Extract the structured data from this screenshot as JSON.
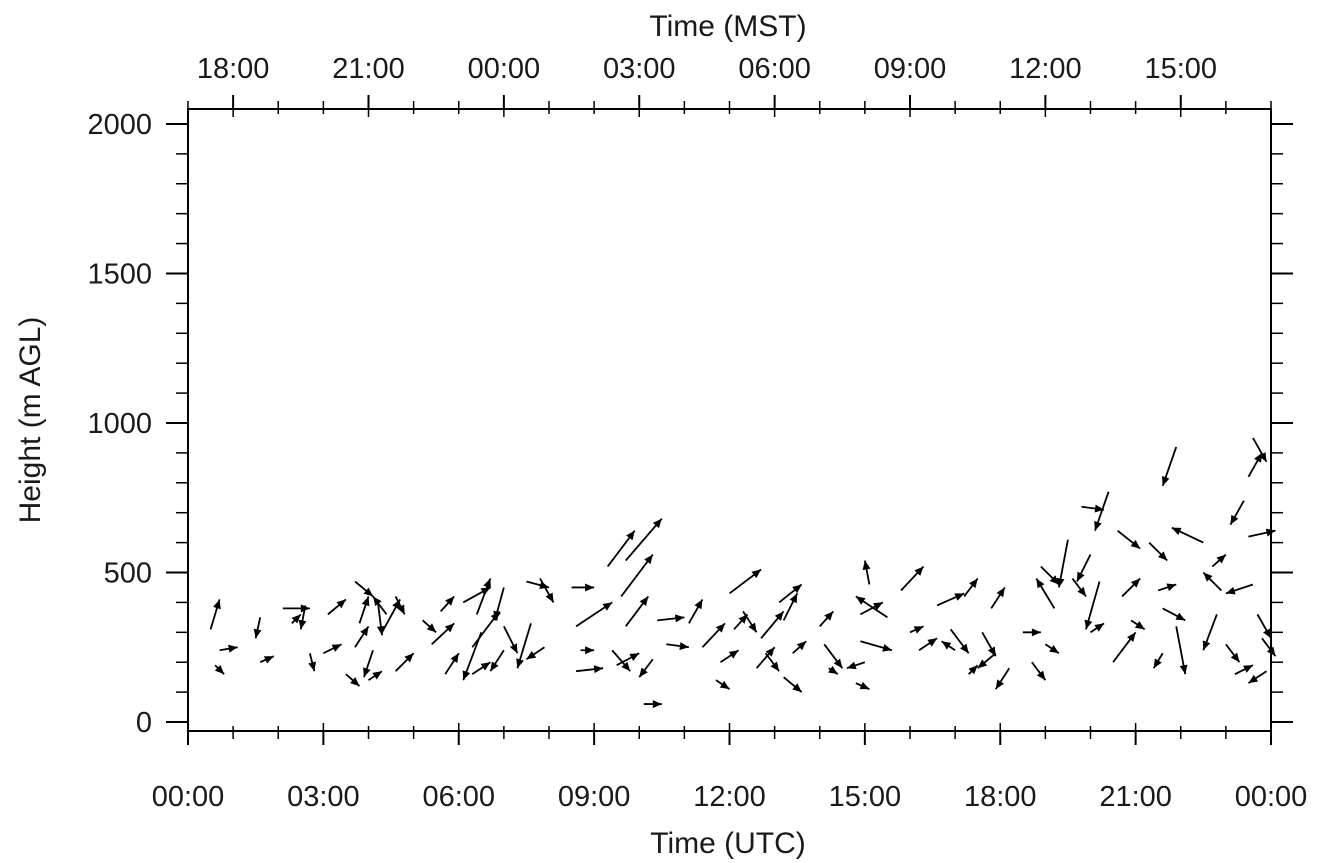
{
  "chart_data": {
    "type": "vector",
    "title": "",
    "xlabel_bottom": "Time (UTC)",
    "xlabel_top": "Time (MST)",
    "ylabel": "Height (m AGL)",
    "x_unit": "hours since 00:00 UTC",
    "xlim": [
      0,
      24
    ],
    "ylim": [
      -30,
      2050
    ],
    "x_ticks_bottom": [
      "00:00",
      "03:00",
      "06:00",
      "09:00",
      "12:00",
      "15:00",
      "18:00",
      "21:00",
      "00:00"
    ],
    "x_ticks_top": [
      "18:00",
      "21:00",
      "00:00",
      "03:00",
      "06:00",
      "09:00",
      "12:00",
      "15:00"
    ],
    "y_ticks": [
      "0",
      "500",
      "1000",
      "1500",
      "2000"
    ],
    "y_tick_values": [
      0,
      500,
      1000,
      1500,
      2000
    ],
    "grid": false,
    "legend": "none",
    "vectors": [
      [
        0.5,
        310,
        0.2,
        100
      ],
      [
        0.7,
        240,
        0.4,
        10
      ],
      [
        0.6,
        190,
        0.2,
        -30
      ],
      [
        1.6,
        350,
        -0.1,
        -70
      ],
      [
        1.6,
        200,
        0.3,
        20
      ],
      [
        2.1,
        380,
        0.6,
        0
      ],
      [
        2.6,
        390,
        -0.1,
        -80
      ],
      [
        2.3,
        330,
        0.2,
        30
      ],
      [
        2.7,
        230,
        0.1,
        -60
      ],
      [
        3.1,
        360,
        0.4,
        50
      ],
      [
        3.0,
        230,
        0.4,
        30
      ],
      [
        3.5,
        160,
        0.3,
        -40
      ],
      [
        3.7,
        470,
        0.4,
        -50
      ],
      [
        3.8,
        330,
        0.2,
        90
      ],
      [
        3.7,
        250,
        0.3,
        70
      ],
      [
        4.2,
        410,
        0.1,
        -120
      ],
      [
        4.4,
        360,
        -0.3,
        60
      ],
      [
        4.3,
        300,
        0.4,
        110
      ],
      [
        4.1,
        240,
        -0.2,
        -90
      ],
      [
        4.0,
        140,
        0.3,
        30
      ],
      [
        4.6,
        420,
        0.2,
        -60
      ],
      [
        4.6,
        170,
        0.4,
        60
      ],
      [
        5.2,
        340,
        0.3,
        -40
      ],
      [
        5.6,
        370,
        0.3,
        50
      ],
      [
        5.4,
        260,
        0.5,
        70
      ],
      [
        5.7,
        160,
        0.3,
        70
      ],
      [
        6.1,
        400,
        0.6,
        50
      ],
      [
        6.4,
        360,
        0.3,
        120
      ],
      [
        6.5,
        300,
        -0.4,
        -160
      ],
      [
        6.3,
        250,
        0.6,
        120
      ],
      [
        6.3,
        160,
        0.4,
        40
      ],
      [
        7.0,
        450,
        -0.2,
        -110
      ],
      [
        7.0,
        320,
        0.3,
        -90
      ],
      [
        7.0,
        240,
        -0.3,
        -70
      ],
      [
        7.5,
        470,
        0.5,
        -20
      ],
      [
        7.8,
        480,
        0.3,
        -80
      ],
      [
        7.6,
        330,
        -0.3,
        -150
      ],
      [
        7.9,
        250,
        -0.4,
        -40
      ],
      [
        8.5,
        450,
        0.5,
        0
      ],
      [
        8.6,
        320,
        0.8,
        80
      ],
      [
        8.7,
        240,
        0.3,
        0
      ],
      [
        8.6,
        170,
        0.6,
        10
      ],
      [
        9.3,
        520,
        0.6,
        120
      ],
      [
        9.7,
        540,
        0.8,
        140
      ],
      [
        9.6,
        420,
        0.7,
        140
      ],
      [
        9.7,
        320,
        0.5,
        100
      ],
      [
        9.4,
        240,
        0.4,
        -70
      ],
      [
        9.5,
        190,
        0.5,
        40
      ],
      [
        10.4,
        340,
        0.6,
        10
      ],
      [
        10.6,
        260,
        0.5,
        -10
      ],
      [
        10.3,
        210,
        -0.3,
        -60
      ],
      [
        10.1,
        60,
        0.4,
        0
      ],
      [
        11.1,
        330,
        0.3,
        80
      ],
      [
        11.4,
        250,
        0.5,
        80
      ],
      [
        11.8,
        200,
        0.4,
        40
      ],
      [
        11.7,
        140,
        0.3,
        -30
      ],
      [
        12.0,
        430,
        0.7,
        80
      ],
      [
        12.3,
        370,
        0.3,
        -70
      ],
      [
        12.1,
        310,
        0.3,
        50
      ],
      [
        12.7,
        280,
        0.5,
        90
      ],
      [
        12.6,
        180,
        0.4,
        70
      ],
      [
        12.8,
        230,
        0.3,
        -60
      ],
      [
        13.1,
        400,
        0.5,
        60
      ],
      [
        13.2,
        340,
        0.3,
        90
      ],
      [
        13.4,
        230,
        0.3,
        40
      ],
      [
        13.2,
        150,
        0.4,
        -50
      ],
      [
        14.0,
        320,
        0.3,
        50
      ],
      [
        14.1,
        260,
        0.4,
        -80
      ],
      [
        14.2,
        180,
        0.2,
        -20
      ],
      [
        14.9,
        360,
        0.5,
        40
      ],
      [
        14.9,
        270,
        0.7,
        -30
      ],
      [
        15.0,
        200,
        -0.4,
        -20
      ],
      [
        15.1,
        460,
        -0.1,
        80
      ],
      [
        14.8,
        130,
        0.3,
        -20
      ],
      [
        15.5,
        350,
        -0.7,
        70
      ],
      [
        15.8,
        440,
        0.5,
        80
      ],
      [
        16.0,
        300,
        0.3,
        20
      ],
      [
        16.2,
        240,
        0.4,
        40
      ],
      [
        16.6,
        390,
        0.6,
        40
      ],
      [
        16.9,
        310,
        0.4,
        -80
      ],
      [
        17.2,
        420,
        0.3,
        60
      ],
      [
        17.0,
        240,
        -0.3,
        30
      ],
      [
        17.3,
        160,
        0.2,
        30
      ],
      [
        17.8,
        380,
        0.3,
        70
      ],
      [
        17.6,
        300,
        0.3,
        -80
      ],
      [
        17.9,
        230,
        -0.4,
        -50
      ],
      [
        18.2,
        180,
        -0.3,
        -70
      ],
      [
        18.5,
        300,
        0.4,
        0
      ],
      [
        18.7,
        200,
        0.3,
        -60
      ],
      [
        18.9,
        520,
        0.4,
        -60
      ],
      [
        19.0,
        260,
        0.3,
        -30
      ],
      [
        19.2,
        380,
        -0.4,
        100
      ],
      [
        19.5,
        610,
        -0.2,
        -160
      ],
      [
        19.6,
        480,
        0.3,
        -60
      ],
      [
        19.8,
        720,
        0.5,
        -10
      ],
      [
        20.0,
        560,
        -0.3,
        -90
      ],
      [
        20.2,
        470,
        -0.3,
        -160
      ],
      [
        20.0,
        300,
        0.3,
        30
      ],
      [
        20.4,
        770,
        -0.3,
        -130
      ],
      [
        20.6,
        640,
        0.5,
        -60
      ],
      [
        20.7,
        420,
        0.4,
        60
      ],
      [
        20.9,
        340,
        0.3,
        -30
      ],
      [
        20.5,
        200,
        0.5,
        100
      ],
      [
        21.3,
        600,
        0.4,
        -60
      ],
      [
        21.5,
        440,
        0.4,
        20
      ],
      [
        21.6,
        380,
        0.5,
        -40
      ],
      [
        21.9,
        320,
        0.2,
        -160
      ],
      [
        21.6,
        230,
        -0.2,
        -50
      ],
      [
        21.9,
        920,
        -0.3,
        -130
      ],
      [
        22.5,
        600,
        -0.7,
        50
      ],
      [
        22.7,
        520,
        0.3,
        40
      ],
      [
        22.9,
        440,
        -0.4,
        60
      ],
      [
        22.8,
        360,
        -0.3,
        -120
      ],
      [
        23.0,
        260,
        0.3,
        -60
      ],
      [
        23.2,
        160,
        0.4,
        30
      ],
      [
        23.4,
        740,
        -0.3,
        -80
      ],
      [
        23.5,
        820,
        0.3,
        80
      ],
      [
        23.6,
        950,
        0.3,
        -80
      ],
      [
        23.5,
        620,
        0.6,
        20
      ],
      [
        23.6,
        460,
        -0.6,
        -30
      ],
      [
        23.7,
        360,
        0.3,
        -80
      ],
      [
        23.8,
        280,
        0.3,
        -60
      ],
      [
        23.9,
        170,
        -0.4,
        -40
      ]
    ]
  }
}
